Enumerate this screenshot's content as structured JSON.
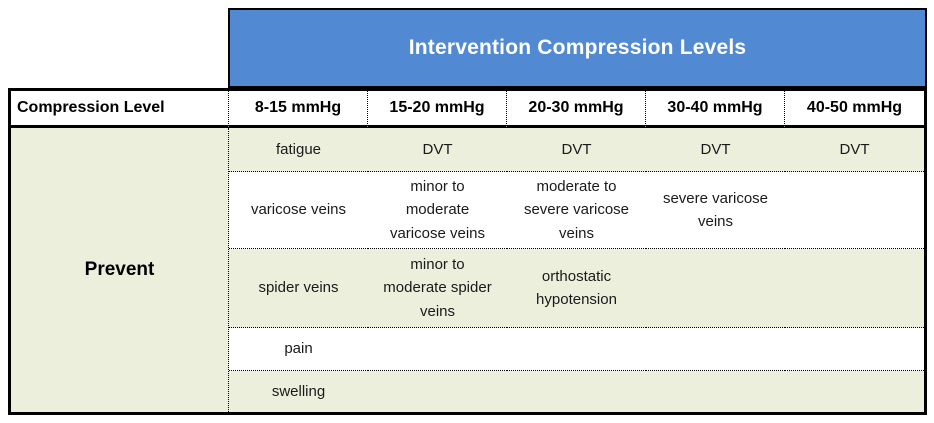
{
  "title_banner": {
    "text": "Intervention Compression Levels"
  },
  "table": {
    "corner_header": "Compression Level",
    "column_headers": [
      "8-15 mmHg",
      "15-20 mmHg",
      "20-30 mmHg",
      "30-40 mmHg",
      "40-50 mmHg"
    ],
    "row_group": {
      "label": "Prevent"
    },
    "rows": [
      {
        "cells": [
          "fatigue",
          "DVT",
          "DVT",
          "DVT",
          "DVT"
        ]
      },
      {
        "cells": [
          "varicose veins",
          "minor to moderate varicose veins",
          "moderate to severe varicose veins",
          "severe varicose veins",
          ""
        ]
      },
      {
        "cells": [
          "spider veins",
          "minor to moderate spider veins",
          "orthostatic hypotension",
          "",
          ""
        ]
      },
      {
        "cells": [
          "pain",
          "",
          "",
          "",
          ""
        ]
      },
      {
        "cells": [
          "swelling",
          "",
          "",
          "",
          ""
        ]
      }
    ]
  },
  "colors": {
    "banner_blue": "#5289d3",
    "row_shade_green": "#ebefdc",
    "row_shade_white": "#ffffff",
    "border_black": "#000000",
    "banner_text": "#ffffff",
    "body_text": "#1a1a1a"
  }
}
